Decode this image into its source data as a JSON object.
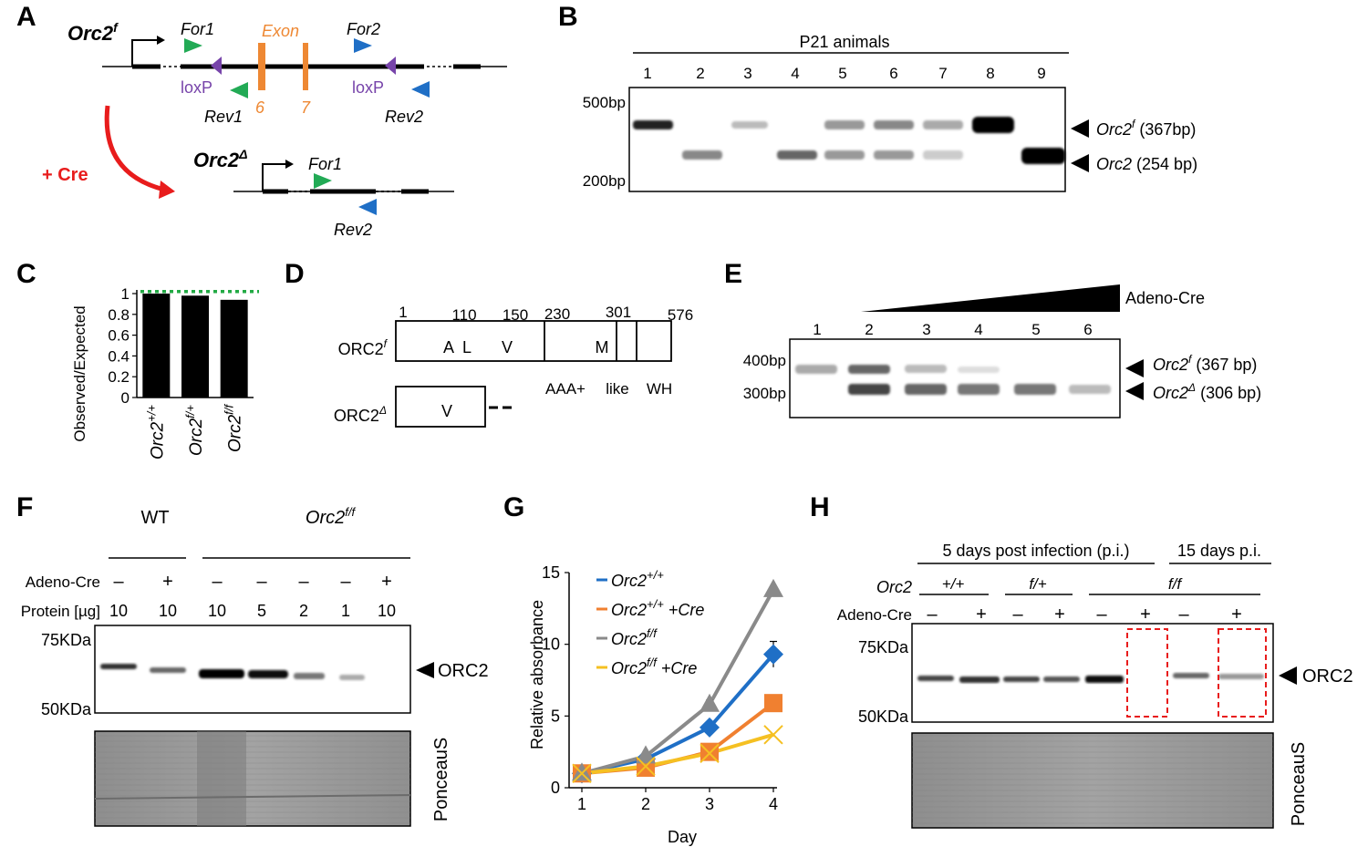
{
  "panels": {
    "A": {
      "letter": "A",
      "allele_f": "Orc2",
      "allele_f_sup": "f",
      "for1": "For1",
      "rev1": "Rev1",
      "for2": "For2",
      "rev2": "Rev2",
      "exon_label": "Exon",
      "exon6": "6",
      "exon7": "7",
      "loxp": "loxP",
      "cre_label": "+ Cre",
      "allele_d": "Orc2",
      "allele_d_sup": "Δ"
    },
    "B": {
      "letter": "B",
      "header": "P21 animals",
      "lanes": [
        "1",
        "2",
        "3",
        "4",
        "5",
        "6",
        "7",
        "8",
        "9"
      ],
      "marker_top": "500bp",
      "marker_bottom": "200bp",
      "band_top_gene": "Orc2",
      "band_top_sup": "f",
      "band_top_size": "(367bp)",
      "band_bottom_gene": "Orc2",
      "band_bottom_size": "(254 bp)"
    },
    "C": {
      "letter": "C",
      "ylabel": "Observed/Expected",
      "yticks": [
        "0",
        "0.2",
        "0.4",
        "0.6",
        "0.8",
        "1"
      ],
      "categories": [
        {
          "gene": "Orc2",
          "sup": "+/+"
        },
        {
          "gene": "Orc2",
          "sup": "f/+"
        },
        {
          "gene": "Orc2",
          "sup": "f/f"
        }
      ]
    },
    "D": {
      "letter": "D",
      "positions": [
        "1",
        "110",
        "150",
        "230",
        "301",
        "576"
      ],
      "residues_f": [
        "A",
        "L",
        "V",
        "M"
      ],
      "residue_d": "V",
      "row_f_label": "ORC2",
      "row_f_sup": "f",
      "row_d_label": "ORC2",
      "row_d_sup": "Δ",
      "domains": [
        "AAA+",
        "like",
        "WH"
      ]
    },
    "E": {
      "letter": "E",
      "treatment": "Adeno-Cre",
      "lanes": [
        "1",
        "2",
        "3",
        "4",
        "5",
        "6"
      ],
      "marker_top": "400bp",
      "marker_bottom": "300bp",
      "band_top_gene": "Orc2",
      "band_top_sup": "f",
      "band_top_size": "(367 bp)",
      "band_bottom_gene": "Orc2",
      "band_bottom_sup": "Δ",
      "band_bottom_size": "(306 bp)"
    },
    "F": {
      "letter": "F",
      "group_wt": "WT",
      "group_ff": "Orc2",
      "group_ff_sup": "f/f",
      "row_cre": "Adeno-Cre",
      "row_protein": "Protein [µg]",
      "cre_values": [
        "–",
        "+",
        "–",
        "–",
        "–",
        "–",
        "+"
      ],
      "protein_values": [
        "10",
        "10",
        "10",
        "5",
        "2",
        "1",
        "10"
      ],
      "marker_top": "75KDa",
      "marker_bottom": "50KDa",
      "band_label": "ORC2",
      "stain_label": "PonceauS"
    },
    "G": {
      "letter": "G",
      "ylabel": "Relative absorbance",
      "xlabel": "Day",
      "yticks": [
        "0",
        "5",
        "10",
        "15"
      ],
      "xticks": [
        "1",
        "2",
        "3",
        "4"
      ]
    },
    "H": {
      "letter": "H",
      "header_left": "5 days post infection (p.i.)",
      "header_right": "15 days p.i.",
      "row_genotype": "Orc2",
      "genotypes": [
        "+/+",
        "f/+",
        "f/f"
      ],
      "row_cre": "Adeno-Cre",
      "cre_values": [
        "–",
        "+",
        "–",
        "+",
        "–",
        "+",
        "–",
        "+"
      ],
      "marker_top": "75KDa",
      "marker_bottom": "50KDa",
      "band_label": "ORC2",
      "stain_label": "PonceauS"
    }
  },
  "chart_data": [
    {
      "type": "bar",
      "categories": [
        "Orc2+/+",
        "Orc2f/+",
        "Orc2f/f"
      ],
      "values": [
        1.0,
        0.98,
        0.94
      ],
      "reference_line": 1.02,
      "reference_color": "#22aa44",
      "ylabel": "Observed/Expected",
      "ylim": [
        0,
        1
      ],
      "bar_color": "#000000"
    },
    {
      "type": "line",
      "x": [
        1,
        2,
        3,
        4
      ],
      "xlabel": "Day",
      "ylabel": "Relative absorbance",
      "ylim": [
        0,
        15
      ],
      "series": [
        {
          "name": "Orc2+/+",
          "base": "Orc2",
          "sup": "+/+",
          "suffix": "",
          "color": "#1f6fc6",
          "marker": "diamond",
          "values": [
            1.0,
            2.0,
            4.2,
            9.3
          ],
          "error": [
            0,
            0,
            0,
            0.9
          ]
        },
        {
          "name": "Orc2+/+ +Cre",
          "base": "Orc2",
          "sup": "+/+",
          "suffix": " +Cre",
          "color": "#f08030",
          "marker": "square",
          "values": [
            1.0,
            1.4,
            2.5,
            5.9
          ],
          "error": [
            0,
            0,
            0,
            0
          ]
        },
        {
          "name": "Orc2f/f",
          "base": "Orc2",
          "sup": "f/f",
          "suffix": "",
          "color": "#8a8a8a",
          "marker": "triangle",
          "values": [
            1.0,
            2.2,
            5.8,
            13.8
          ],
          "error": [
            0,
            0,
            0.3,
            0
          ]
        },
        {
          "name": "Orc2f/f +Cre",
          "base": "Orc2",
          "sup": "f/f",
          "suffix": " +Cre",
          "color": "#f5c022",
          "marker": "x",
          "values": [
            1.0,
            1.5,
            2.4,
            3.7
          ],
          "error": [
            0,
            0,
            0,
            0
          ]
        }
      ]
    }
  ]
}
